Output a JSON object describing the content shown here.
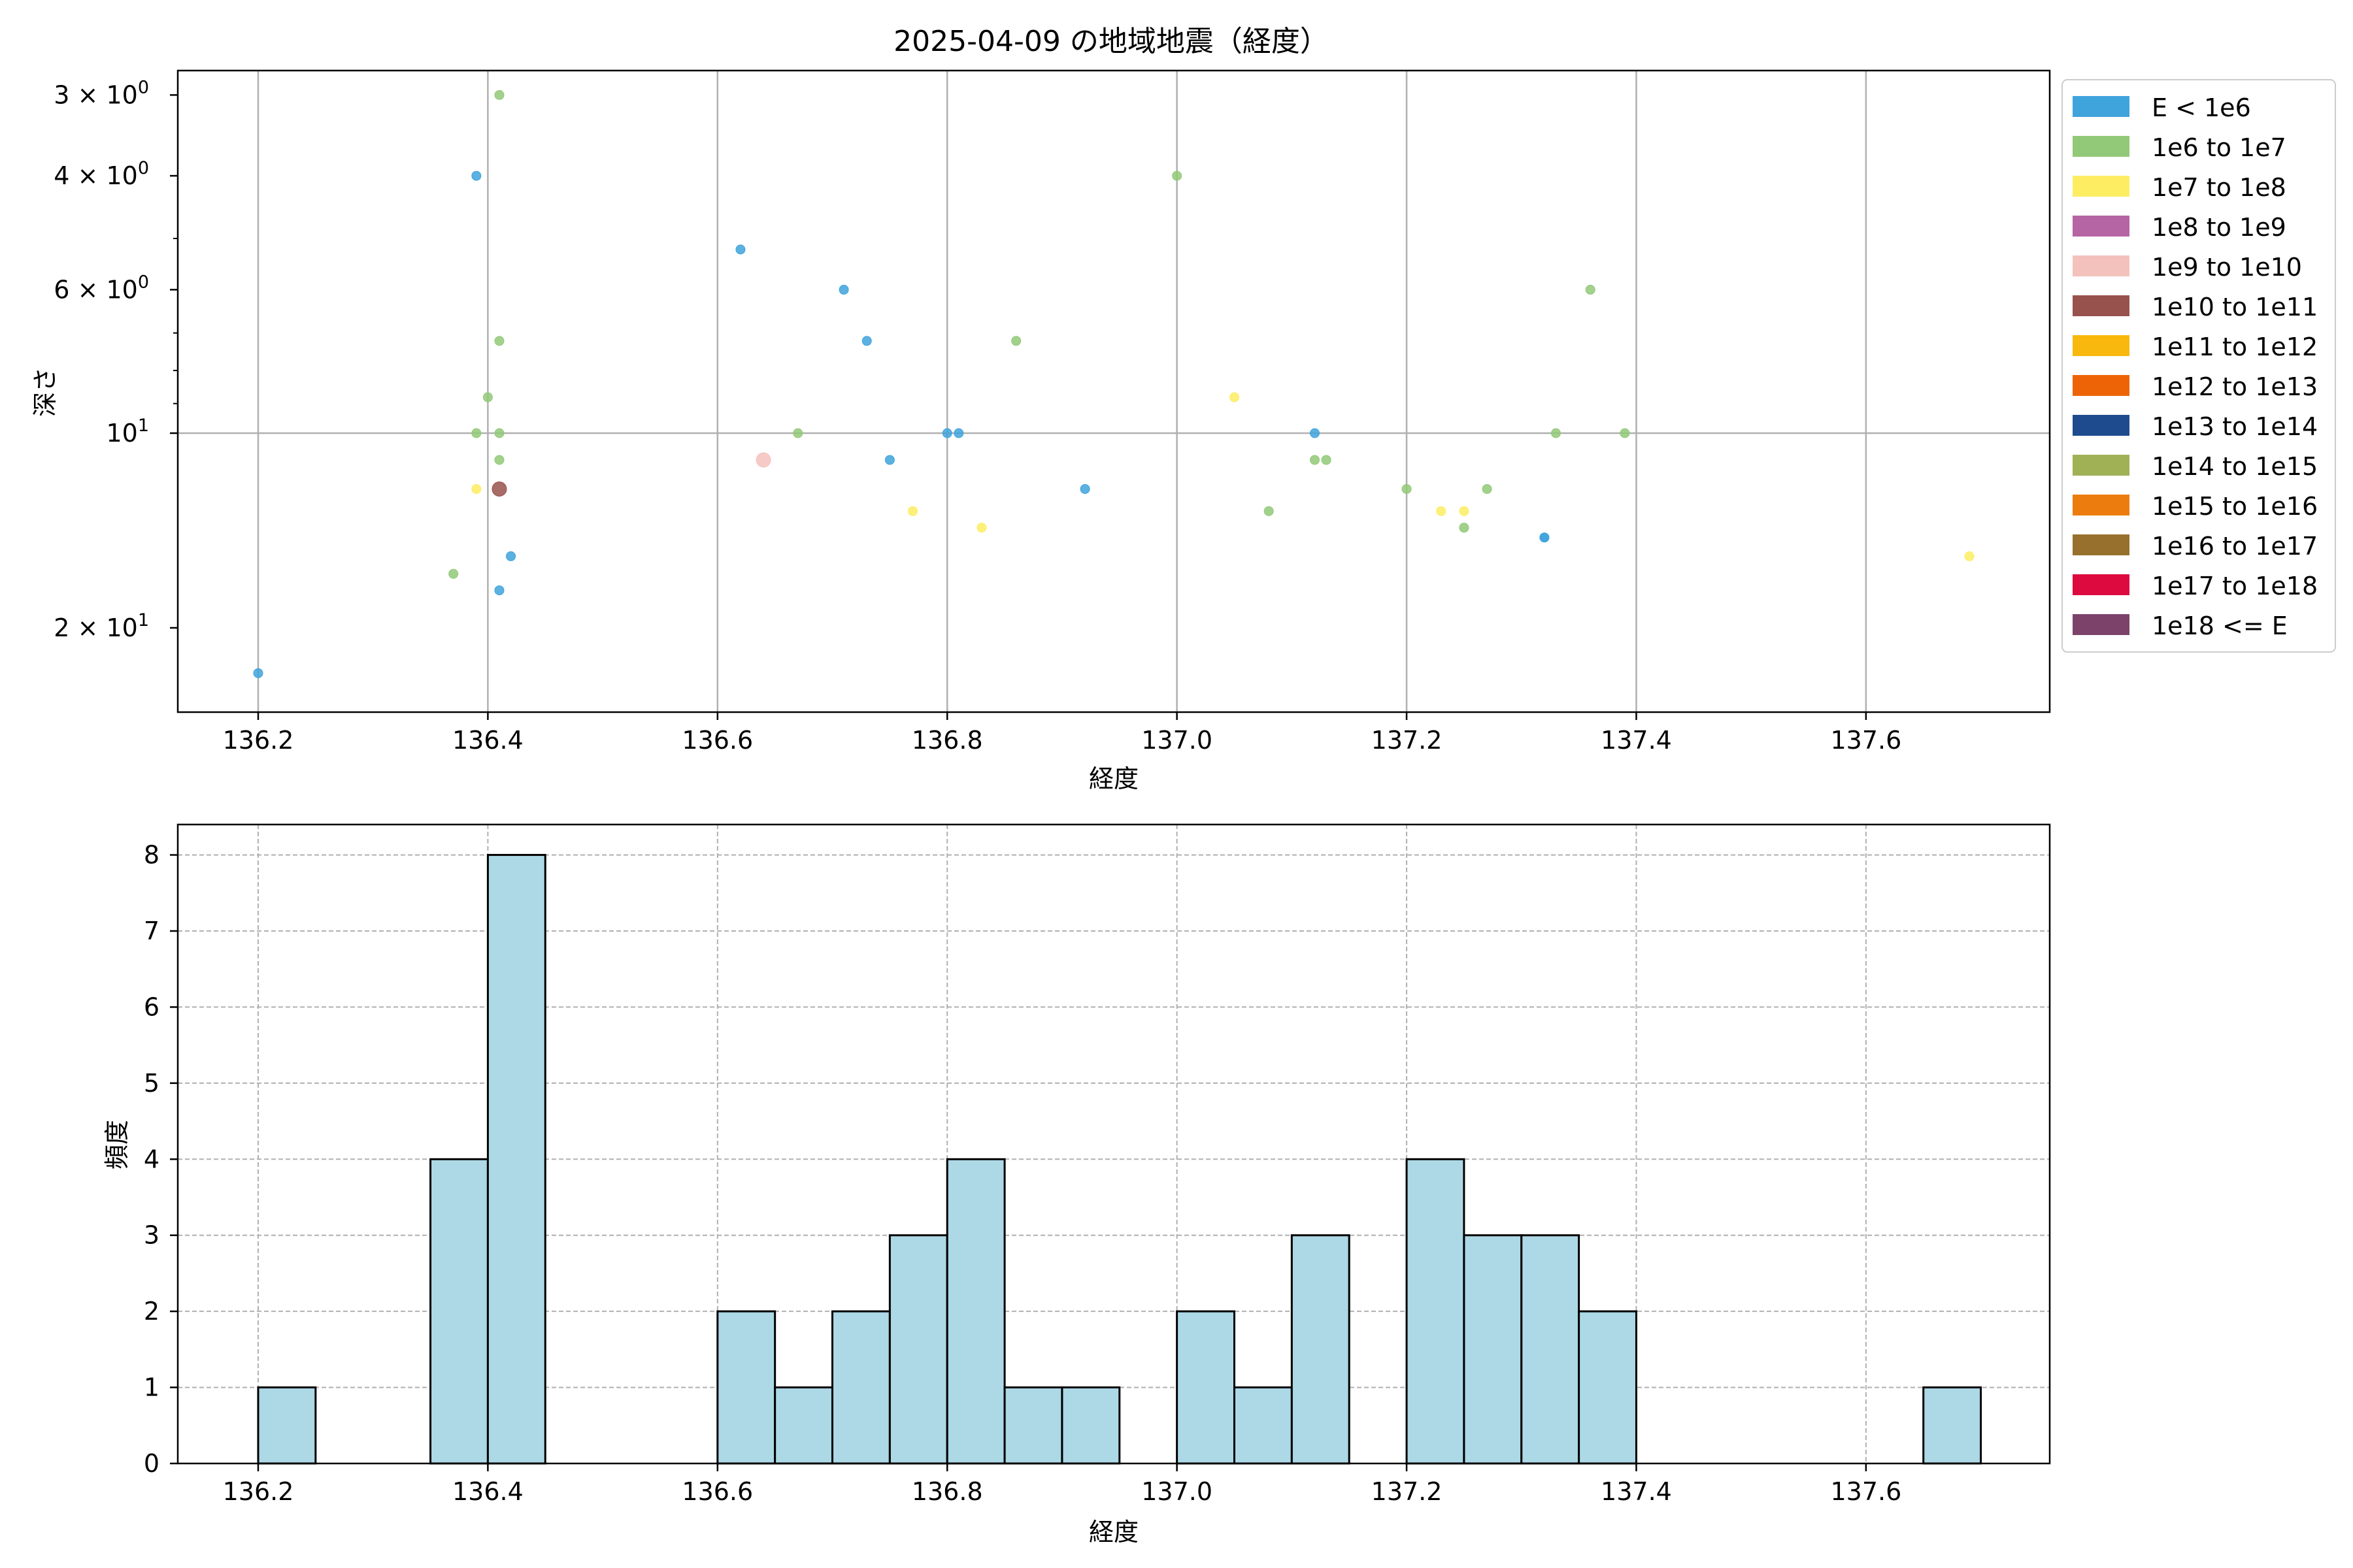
{
  "title": "2025-04-09 の地域地震（経度）",
  "scatter_panel": {
    "xlabel": "経度",
    "ylabel": "深さ",
    "legend": [
      {
        "label": "E < 1e6",
        "color": "#3fa3dc"
      },
      {
        "label": "1e6 to 1e7",
        "color": "#92c978"
      },
      {
        "label": "1e7 to 1e8",
        "color": "#fded63"
      },
      {
        "label": "1e8 to 1e9",
        "color": "#b564a4"
      },
      {
        "label": "1e9 to 1e10",
        "color": "#f4c2bd"
      },
      {
        "label": "1e10 to 1e11",
        "color": "#98524e"
      },
      {
        "label": "1e11 to 1e12",
        "color": "#f8b80d"
      },
      {
        "label": "1e12 to 1e13",
        "color": "#ed6407"
      },
      {
        "label": "1e13 to 1e14",
        "color": "#1e4b8d"
      },
      {
        "label": "1e14 to 1e15",
        "color": "#9fb055"
      },
      {
        "label": "1e15 to 1e16",
        "color": "#ec7c0d"
      },
      {
        "label": "1e16 to 1e17",
        "color": "#96702c"
      },
      {
        "label": "1e17 to 1e18",
        "color": "#dc0a3f"
      },
      {
        "label": "1e18 <= E",
        "color": "#7c4269"
      }
    ],
    "xticks": [
      "136.2",
      "136.4",
      "136.6",
      "136.8",
      "137.0",
      "137.2",
      "137.4",
      "137.6"
    ],
    "yticks": [
      {
        "base": "3 × 10",
        "exp": "0",
        "value": 3
      },
      {
        "base": "4 × 10",
        "exp": "0",
        "value": 4
      },
      {
        "base": "6 × 10",
        "exp": "0",
        "value": 6
      },
      {
        "base": "10",
        "exp": "1",
        "value": 10
      },
      {
        "base": "2 × 10",
        "exp": "1",
        "value": 20
      }
    ]
  },
  "hist_panel": {
    "xlabel": "経度",
    "ylabel": "頻度",
    "xticks": [
      "136.2",
      "136.4",
      "136.6",
      "136.8",
      "137.0",
      "137.2",
      "137.4",
      "137.6"
    ],
    "yticks": [
      "0",
      "1",
      "2",
      "3",
      "4",
      "5",
      "6",
      "7",
      "8"
    ]
  },
  "chart_data": [
    {
      "type": "scatter",
      "title": "2025-04-09 の地域地震（経度）",
      "xlabel": "経度",
      "ylabel": "深さ",
      "xlim": [
        136.13,
        137.76
      ],
      "ylim": [
        27,
        2.75
      ],
      "y_scale": "log",
      "y_inverted": true,
      "grid": true,
      "legend_position": "outside-right",
      "series": [
        {
          "name": "E < 1e6",
          "color": "#3fa3dc",
          "points": [
            [
              136.2,
              23.5
            ],
            [
              136.39,
              4
            ],
            [
              136.41,
              17.5
            ],
            [
              136.42,
              15.5
            ],
            [
              136.62,
              5.2
            ],
            [
              136.71,
              6
            ],
            [
              136.73,
              7.2
            ],
            [
              136.75,
              11
            ],
            [
              136.8,
              10
            ],
            [
              136.81,
              10
            ],
            [
              136.92,
              12.2
            ],
            [
              137.12,
              10
            ],
            [
              137.32,
              14.5
            ],
            [
              137.32,
              14.5
            ]
          ]
        },
        {
          "name": "1e6 to 1e7",
          "color": "#92c978",
          "points": [
            [
              136.37,
              16.5
            ],
            [
              136.39,
              10
            ],
            [
              136.4,
              8.8
            ],
            [
              136.41,
              10
            ],
            [
              136.41,
              7.2
            ],
            [
              136.41,
              11
            ],
            [
              136.41,
              3
            ],
            [
              136.67,
              10
            ],
            [
              136.86,
              7.2
            ],
            [
              137.0,
              4
            ],
            [
              137.08,
              13.2
            ],
            [
              137.12,
              11
            ],
            [
              137.13,
              11
            ],
            [
              137.2,
              12.2
            ],
            [
              137.25,
              14
            ],
            [
              137.27,
              12.2
            ],
            [
              137.33,
              10
            ],
            [
              137.36,
              6
            ],
            [
              137.39,
              10
            ]
          ]
        },
        {
          "name": "1e7 to 1e8",
          "color": "#fded63",
          "points": [
            [
              136.39,
              12.2
            ],
            [
              136.77,
              13.2
            ],
            [
              136.83,
              14
            ],
            [
              137.05,
              8.8
            ],
            [
              137.23,
              13.2
            ],
            [
              137.25,
              13.2
            ],
            [
              137.69,
              15.5
            ]
          ]
        },
        {
          "name": "1e9 to 1e10",
          "color": "#f4c2bd",
          "points": [
            [
              136.64,
              11
            ]
          ]
        },
        {
          "name": "1e10 to 1e11",
          "color": "#98524e",
          "points": [
            [
              136.41,
              12.2
            ]
          ]
        }
      ]
    },
    {
      "type": "bar",
      "xlabel": "経度",
      "ylabel": "頻度",
      "xlim": [
        136.13,
        137.76
      ],
      "ylim": [
        0,
        8.4
      ],
      "grid": true,
      "bin_width": 0.05,
      "bins": [
        {
          "start": 136.2,
          "count": 1
        },
        {
          "start": 136.35,
          "count": 4
        },
        {
          "start": 136.4,
          "count": 8
        },
        {
          "start": 136.6,
          "count": 2
        },
        {
          "start": 136.65,
          "count": 1
        },
        {
          "start": 136.7,
          "count": 2
        },
        {
          "start": 136.75,
          "count": 3
        },
        {
          "start": 136.8,
          "count": 4
        },
        {
          "start": 136.85,
          "count": 1
        },
        {
          "start": 136.9,
          "count": 1
        },
        {
          "start": 137.0,
          "count": 2
        },
        {
          "start": 137.05,
          "count": 1
        },
        {
          "start": 137.1,
          "count": 3
        },
        {
          "start": 137.2,
          "count": 4
        },
        {
          "start": 137.25,
          "count": 3
        },
        {
          "start": 137.3,
          "count": 3
        },
        {
          "start": 137.35,
          "count": 2
        },
        {
          "start": 137.65,
          "count": 1
        }
      ],
      "bar_color": "#add8e6",
      "edge_color": "#000000"
    }
  ]
}
